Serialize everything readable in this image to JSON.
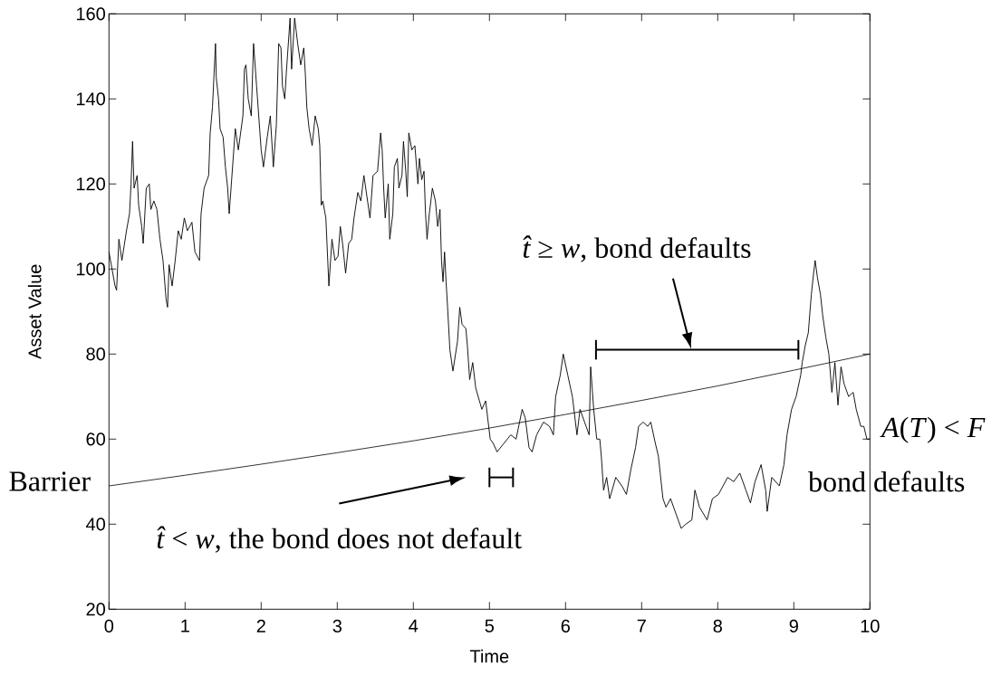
{
  "chart_data": {
    "type": "line",
    "xlabel": "Time",
    "ylabel": "Asset Value",
    "xlim": [
      0,
      10
    ],
    "ylim": [
      20,
      160
    ],
    "xticks": [
      0,
      1,
      2,
      3,
      4,
      5,
      6,
      7,
      8,
      9,
      10
    ],
    "yticks": [
      20,
      40,
      60,
      80,
      100,
      120,
      140,
      160
    ],
    "marker": "none",
    "line_style": "solid",
    "series": [
      {
        "color": "#000000",
        "x": [
          0,
          0.04,
          0.08,
          0.1,
          0.13,
          0.17,
          0.23,
          0.27,
          0.29,
          0.31,
          0.33,
          0.37,
          0.39,
          0.43,
          0.45,
          0.49,
          0.53,
          0.55,
          0.59,
          0.63,
          0.67,
          0.71,
          0.75,
          0.77,
          0.79,
          0.83,
          0.87,
          0.91,
          0.95,
          0.99,
          1.03,
          1.09,
          1.13,
          1.19,
          1.21,
          1.25,
          1.31,
          1.33,
          1.36,
          1.4,
          1.41,
          1.44,
          1.46,
          1.5,
          1.53,
          1.56,
          1.58,
          1.62,
          1.66,
          1.7,
          1.76,
          1.78,
          1.8,
          1.83,
          1.87,
          1.9,
          1.94,
          1.98,
          2.0,
          2.03,
          2.08,
          2.12,
          2.16,
          2.2,
          2.23,
          2.26,
          2.28,
          2.31,
          2.33,
          2.38,
          2.4,
          2.44,
          2.48,
          2.52,
          2.56,
          2.58,
          2.6,
          2.63,
          2.67,
          2.71,
          2.75,
          2.77,
          2.79,
          2.81,
          2.85,
          2.87,
          2.89,
          2.93,
          2.97,
          3.01,
          3.04,
          3.07,
          3.11,
          3.15,
          3.19,
          3.22,
          3.27,
          3.31,
          3.35,
          3.39,
          3.43,
          3.47,
          3.53,
          3.57,
          3.59,
          3.61,
          3.63,
          3.67,
          3.69,
          3.73,
          3.75,
          3.79,
          3.81,
          3.85,
          3.87,
          3.9,
          3.92,
          3.94,
          3.98,
          4.02,
          4.06,
          4.08,
          4.11,
          4.14,
          4.16,
          4.18,
          4.21,
          4.25,
          4.29,
          4.32,
          4.35,
          4.37,
          4.39,
          4.41,
          4.43,
          4.45,
          4.48,
          4.52,
          4.58,
          4.61,
          4.64,
          4.69,
          4.71,
          4.74,
          4.78,
          4.82,
          4.9,
          4.95,
          5.01,
          5.05,
          5.1,
          5.19,
          5.28,
          5.35,
          5.43,
          5.47,
          5.52,
          5.56,
          5.62,
          5.71,
          5.79,
          5.84,
          5.87,
          5.93,
          5.97,
          6.03,
          6.09,
          6.15,
          6.19,
          6.27,
          6.31,
          6.33,
          6.37,
          6.41,
          6.45,
          6.47,
          6.5,
          6.54,
          6.58,
          6.66,
          6.74,
          6.8,
          6.86,
          6.92,
          6.96,
          7.02,
          7.08,
          7.12,
          7.18,
          7.22,
          7.28,
          7.32,
          7.38,
          7.46,
          7.52,
          7.58,
          7.66,
          7.7,
          7.76,
          7.86,
          7.93,
          8.01,
          8.13,
          8.21,
          8.29,
          8.37,
          8.43,
          8.49,
          8.57,
          8.63,
          8.65,
          8.71,
          8.81,
          8.87,
          8.91,
          8.97,
          9.03,
          9.09,
          9.11,
          9.15,
          9.19,
          9.23,
          9.26,
          9.28,
          9.31,
          9.35,
          9.38,
          9.42,
          9.46,
          9.5,
          9.54,
          9.58,
          9.62,
          9.66,
          9.72,
          9.78,
          9.82,
          9.88,
          9.92,
          9.96,
          10
        ],
        "values": [
          104,
          100,
          96,
          95,
          107,
          102,
          109,
          113,
          120,
          130,
          119,
          122,
          115,
          110,
          106,
          119,
          120,
          114,
          116,
          114,
          107,
          102,
          93,
          91,
          101,
          96,
          102,
          109,
          107,
          112,
          109,
          111,
          104,
          102,
          113,
          119,
          122,
          132,
          138,
          153,
          145,
          140,
          133,
          131,
          124,
          119,
          113,
          123,
          133,
          128,
          136,
          147,
          148,
          140,
          136,
          153,
          143,
          133,
          128,
          124,
          131,
          136,
          124,
          134,
          153,
          152,
          143,
          140,
          146,
          159,
          147,
          159,
          153,
          148,
          152,
          146,
          138,
          133,
          129,
          136,
          133,
          129,
          115,
          116,
          112,
          104,
          96,
          107,
          102,
          103,
          110,
          106,
          99,
          106,
          107,
          112,
          118,
          116,
          122,
          117,
          112,
          122,
          123,
          132,
          128,
          119,
          112,
          120,
          107,
          113,
          124,
          126,
          119,
          122,
          130,
          123,
          117,
          132,
          128,
          129,
          120,
          126,
          121,
          123,
          113,
          107,
          113,
          119,
          116,
          110,
          114,
          102,
          97,
          104,
          97,
          91,
          81,
          76,
          83,
          91,
          87,
          86,
          82,
          74,
          78,
          72,
          67,
          69,
          60,
          59,
          57,
          59,
          61,
          60,
          67,
          65,
          58,
          57,
          61,
          64,
          63,
          61,
          70,
          75,
          80,
          75,
          70,
          61,
          67,
          63,
          61,
          77,
          67,
          60,
          60,
          56,
          48,
          51,
          46,
          51,
          49,
          47,
          53,
          58,
          63,
          64,
          63,
          64,
          59,
          56,
          46,
          44,
          46,
          42,
          39,
          40,
          41,
          48,
          44,
          41,
          46,
          47,
          51,
          50,
          52,
          48,
          45,
          50,
          54,
          48,
          43,
          51,
          49,
          54,
          61,
          67,
          70,
          75,
          78,
          82,
          85,
          94,
          99,
          102,
          98,
          94,
          89,
          84,
          80,
          71,
          78,
          68,
          77,
          73,
          70,
          71,
          67,
          63,
          63,
          60,
          60
        ]
      },
      {
        "name": "Barrier",
        "color": "#000000",
        "x": [
          0,
          1,
          2,
          3,
          4,
          5,
          6,
          7,
          8,
          9,
          10
        ],
        "values": [
          49,
          51.5,
          54.1,
          56.8,
          59.6,
          62.6,
          65.8,
          69.1,
          72.5,
          76.2,
          80
        ]
      },
      {
        "color": "#000000",
        "x": [
          5.0,
          5.31
        ],
        "values": [
          51,
          51
        ],
        "errors": [
          2.3,
          2.3
        ]
      },
      {
        "color": "#000000",
        "x": [
          6.4,
          9.06
        ],
        "values": [
          81,
          81
        ],
        "errors": [
          2.3,
          2.3
        ]
      }
    ],
    "annotations": [
      "*t̂* ≥ *w*, bond defaults",
      {
        "text": "*t̂* < *w*, the bond does not default",
        "x": 5.0,
        "y": 51
      },
      {
        "text": "*A*(*T*) < *F*",
        "x": 10,
        "y": 60
      },
      "bond defaults"
    ]
  }
}
